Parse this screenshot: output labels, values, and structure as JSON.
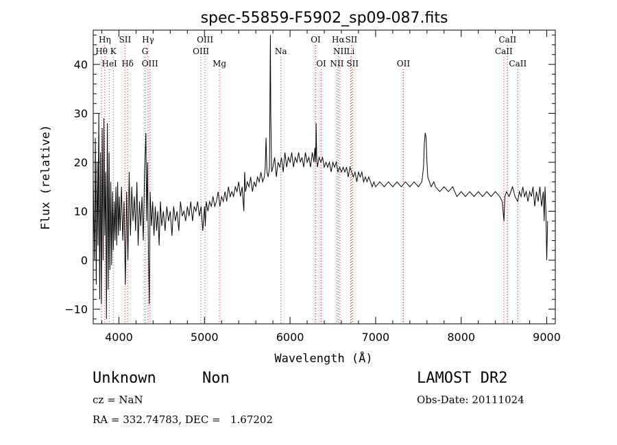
{
  "chart_data": {
    "type": "line",
    "title": "spec-55859-F5902_sp09-087.fits",
    "xlabel": "Wavelength (Å)",
    "ylabel": "Flux (relative)",
    "xlim": [
      3700,
      9100
    ],
    "ylim": [
      -13,
      47
    ],
    "xticks": [
      4000,
      5000,
      6000,
      7000,
      8000,
      9000
    ],
    "yticks": [
      -10,
      0,
      10,
      20,
      30,
      40
    ],
    "grid": false,
    "line_color": "#000000",
    "marker_color": "#cc2222",
    "series": [
      {
        "values": [
          [
            3700,
            17
          ],
          [
            3715,
            0
          ],
          [
            3725,
            25
          ],
          [
            3735,
            -5
          ],
          [
            3745,
            20
          ],
          [
            3755,
            3
          ],
          [
            3765,
            30
          ],
          [
            3775,
            -8
          ],
          [
            3785,
            22
          ],
          [
            3795,
            -9
          ],
          [
            3805,
            27
          ],
          [
            3815,
            0
          ],
          [
            3825,
            29
          ],
          [
            3835,
            5
          ],
          [
            3845,
            18
          ],
          [
            3855,
            -12
          ],
          [
            3865,
            28
          ],
          [
            3875,
            -6
          ],
          [
            3885,
            22
          ],
          [
            3895,
            -2
          ],
          [
            3905,
            16
          ],
          [
            3915,
            -1
          ],
          [
            3925,
            14
          ],
          [
            3935,
            2
          ],
          [
            3945,
            12
          ],
          [
            3955,
            4
          ],
          [
            3965,
            15
          ],
          [
            3975,
            3
          ],
          [
            3985,
            16
          ],
          [
            3995,
            5
          ],
          [
            4005,
            13
          ],
          [
            4015,
            6
          ],
          [
            4030,
            15
          ],
          [
            4045,
            4
          ],
          [
            4060,
            12
          ],
          [
            4075,
            -5
          ],
          [
            4090,
            14
          ],
          [
            4105,
            0
          ],
          [
            4120,
            18
          ],
          [
            4135,
            5
          ],
          [
            4150,
            15
          ],
          [
            4165,
            8
          ],
          [
            4180,
            13
          ],
          [
            4195,
            6
          ],
          [
            4210,
            16
          ],
          [
            4225,
            3
          ],
          [
            4240,
            12
          ],
          [
            4255,
            7
          ],
          [
            4270,
            13
          ],
          [
            4285,
            4
          ],
          [
            4300,
            18
          ],
          [
            4315,
            26
          ],
          [
            4325,
            8
          ],
          [
            4335,
            20
          ],
          [
            4345,
            2
          ],
          [
            4355,
            -9
          ],
          [
            4365,
            14
          ],
          [
            4380,
            7
          ],
          [
            4395,
            12
          ],
          [
            4410,
            5
          ],
          [
            4425,
            11
          ],
          [
            4440,
            6
          ],
          [
            4455,
            10
          ],
          [
            4470,
            3
          ],
          [
            4485,
            12
          ],
          [
            4500,
            7
          ],
          [
            4520,
            10
          ],
          [
            4540,
            6
          ],
          [
            4560,
            11
          ],
          [
            4580,
            8
          ],
          [
            4600,
            10
          ],
          [
            4620,
            5
          ],
          [
            4640,
            11
          ],
          [
            4660,
            8
          ],
          [
            4680,
            10
          ],
          [
            4700,
            6
          ],
          [
            4720,
            12
          ],
          [
            4740,
            9
          ],
          [
            4760,
            10
          ],
          [
            4780,
            8
          ],
          [
            4800,
            11
          ],
          [
            4820,
            9
          ],
          [
            4840,
            12
          ],
          [
            4860,
            8
          ],
          [
            4880,
            11
          ],
          [
            4900,
            10
          ],
          [
            4920,
            12
          ],
          [
            4940,
            9
          ],
          [
            4960,
            11
          ],
          [
            4980,
            6
          ],
          [
            5000,
            11
          ],
          [
            5010,
            7
          ],
          [
            5020,
            12
          ],
          [
            5040,
            10
          ],
          [
            5060,
            12
          ],
          [
            5080,
            11
          ],
          [
            5100,
            13
          ],
          [
            5120,
            11
          ],
          [
            5140,
            12
          ],
          [
            5160,
            14
          ],
          [
            5180,
            11
          ],
          [
            5200,
            13
          ],
          [
            5220,
            12
          ],
          [
            5240,
            14
          ],
          [
            5260,
            12
          ],
          [
            5280,
            15
          ],
          [
            5300,
            13
          ],
          [
            5320,
            14
          ],
          [
            5340,
            13
          ],
          [
            5360,
            15
          ],
          [
            5380,
            14
          ],
          [
            5400,
            16
          ],
          [
            5420,
            13
          ],
          [
            5440,
            15
          ],
          [
            5460,
            10
          ],
          [
            5470,
            18
          ],
          [
            5480,
            14
          ],
          [
            5500,
            16
          ],
          [
            5520,
            15
          ],
          [
            5540,
            17
          ],
          [
            5560,
            14
          ],
          [
            5580,
            16
          ],
          [
            5600,
            15
          ],
          [
            5620,
            17
          ],
          [
            5640,
            16
          ],
          [
            5660,
            18
          ],
          [
            5680,
            16
          ],
          [
            5700,
            17
          ],
          [
            5710,
            19
          ],
          [
            5720,
            25
          ],
          [
            5730,
            18
          ],
          [
            5745,
            17
          ],
          [
            5760,
            19
          ],
          [
            5770,
            46
          ],
          [
            5775,
            30
          ],
          [
            5785,
            18
          ],
          [
            5800,
            19
          ],
          [
            5820,
            21
          ],
          [
            5840,
            17
          ],
          [
            5860,
            20
          ],
          [
            5880,
            19
          ],
          [
            5900,
            21
          ],
          [
            5920,
            18
          ],
          [
            5940,
            22
          ],
          [
            5960,
            19
          ],
          [
            5980,
            21
          ],
          [
            6000,
            20
          ],
          [
            6020,
            22
          ],
          [
            6040,
            19
          ],
          [
            6060,
            21
          ],
          [
            6080,
            20
          ],
          [
            6100,
            22
          ],
          [
            6120,
            20
          ],
          [
            6140,
            21
          ],
          [
            6160,
            19
          ],
          [
            6180,
            22
          ],
          [
            6200,
            20
          ],
          [
            6220,
            21
          ],
          [
            6240,
            19
          ],
          [
            6260,
            22
          ],
          [
            6280,
            20
          ],
          [
            6290,
            23
          ],
          [
            6300,
            20
          ],
          [
            6305,
            28
          ],
          [
            6312,
            21
          ],
          [
            6320,
            19
          ],
          [
            6340,
            21
          ],
          [
            6360,
            20
          ],
          [
            6380,
            21
          ],
          [
            6400,
            19
          ],
          [
            6420,
            20
          ],
          [
            6440,
            19
          ],
          [
            6460,
            20
          ],
          [
            6480,
            18
          ],
          [
            6500,
            20
          ],
          [
            6520,
            19
          ],
          [
            6540,
            20
          ],
          [
            6560,
            18
          ],
          [
            6580,
            19
          ],
          [
            6600,
            18
          ],
          [
            6620,
            19
          ],
          [
            6640,
            18
          ],
          [
            6660,
            19
          ],
          [
            6680,
            17
          ],
          [
            6700,
            19
          ],
          [
            6720,
            18
          ],
          [
            6740,
            17
          ],
          [
            6760,
            18
          ],
          [
            6780,
            16
          ],
          [
            6800,
            18
          ],
          [
            6820,
            17
          ],
          [
            6840,
            18
          ],
          [
            6860,
            16
          ],
          [
            6880,
            17
          ],
          [
            6900,
            16
          ],
          [
            6920,
            17
          ],
          [
            6940,
            16
          ],
          [
            6960,
            15
          ],
          [
            6980,
            16
          ],
          [
            7000,
            15
          ],
          [
            7050,
            16
          ],
          [
            7100,
            15
          ],
          [
            7150,
            16
          ],
          [
            7200,
            15
          ],
          [
            7250,
            16
          ],
          [
            7300,
            15
          ],
          [
            7350,
            16
          ],
          [
            7400,
            15
          ],
          [
            7450,
            16
          ],
          [
            7500,
            15
          ],
          [
            7540,
            16
          ],
          [
            7560,
            19
          ],
          [
            7570,
            24
          ],
          [
            7580,
            26
          ],
          [
            7590,
            25
          ],
          [
            7600,
            20
          ],
          [
            7610,
            17
          ],
          [
            7630,
            16
          ],
          [
            7650,
            15
          ],
          [
            7680,
            16
          ],
          [
            7700,
            15
          ],
          [
            7750,
            14
          ],
          [
            7800,
            15
          ],
          [
            7850,
            14
          ],
          [
            7900,
            15
          ],
          [
            7950,
            13
          ],
          [
            8000,
            14
          ],
          [
            8050,
            13
          ],
          [
            8100,
            14
          ],
          [
            8150,
            13
          ],
          [
            8200,
            14
          ],
          [
            8250,
            13
          ],
          [
            8300,
            14
          ],
          [
            8350,
            13
          ],
          [
            8400,
            14
          ],
          [
            8450,
            13
          ],
          [
            8480,
            12
          ],
          [
            8500,
            8
          ],
          [
            8510,
            13
          ],
          [
            8530,
            14
          ],
          [
            8560,
            13
          ],
          [
            8600,
            15
          ],
          [
            8630,
            13
          ],
          [
            8660,
            12
          ],
          [
            8680,
            14
          ],
          [
            8700,
            13
          ],
          [
            8720,
            15
          ],
          [
            8740,
            13
          ],
          [
            8760,
            14
          ],
          [
            8780,
            12
          ],
          [
            8800,
            14
          ],
          [
            8820,
            13
          ],
          [
            8840,
            15
          ],
          [
            8860,
            11
          ],
          [
            8880,
            14
          ],
          [
            8900,
            12
          ],
          [
            8920,
            15
          ],
          [
            8940,
            11
          ],
          [
            8960,
            14
          ],
          [
            8970,
            8
          ],
          [
            8980,
            15
          ],
          [
            8990,
            10
          ],
          [
            9000,
            0
          ],
          [
            9010,
            8
          ]
        ]
      }
    ],
    "line_markers": [
      {
        "label": "Hη",
        "wl": 3835,
        "row": 0
      },
      {
        "label": "Hθ",
        "wl": 3797,
        "row": 1
      },
      {
        "label": "K",
        "wl": 3934,
        "row": 1
      },
      {
        "label": "HeI",
        "wl": 3889,
        "row": 2
      },
      {
        "label": "SII",
        "wl": 4072,
        "row": 0
      },
      {
        "label": "Hδ",
        "wl": 4102,
        "row": 2
      },
      {
        "label": "Hγ",
        "wl": 4341,
        "row": 0
      },
      {
        "label": "G",
        "wl": 4305,
        "row": 1
      },
      {
        "label": "OIII",
        "wl": 4363,
        "row": 2
      },
      {
        "label": "OIII",
        "wl": 5007,
        "row": 0
      },
      {
        "label": "OIII",
        "wl": 4959,
        "row": 1
      },
      {
        "label": "Mg",
        "wl": 5175,
        "row": 2
      },
      {
        "label": "Na",
        "wl": 5893,
        "row": 1
      },
      {
        "label": "OI",
        "wl": 6300,
        "row": 0
      },
      {
        "label": "OI",
        "wl": 6364,
        "row": 2
      },
      {
        "label": "Hα",
        "wl": 6563,
        "row": 0
      },
      {
        "label": "SII",
        "wl": 6716,
        "row": 0
      },
      {
        "label": "NII",
        "wl": 6584,
        "row": 1
      },
      {
        "label": "Li",
        "wl": 6708,
        "row": 1
      },
      {
        "label": "NII",
        "wl": 6548,
        "row": 2
      },
      {
        "label": "SII",
        "wl": 6731,
        "row": 2
      },
      {
        "label": "OII",
        "wl": 7325,
        "row": 2
      },
      {
        "label": "CaII",
        "wl": 8542,
        "row": 0
      },
      {
        "label": "CaII",
        "wl": 8498,
        "row": 1
      },
      {
        "label": "CaII",
        "wl": 8662,
        "row": 2
      }
    ]
  },
  "info": {
    "class": "Unknown",
    "subclass": "Non",
    "survey": "LAMOST DR2",
    "cz": "cz = NaN",
    "obs_date": "Obs-Date: 20111024",
    "coords": "RA = 332.74783, DEC =   1.67202"
  }
}
